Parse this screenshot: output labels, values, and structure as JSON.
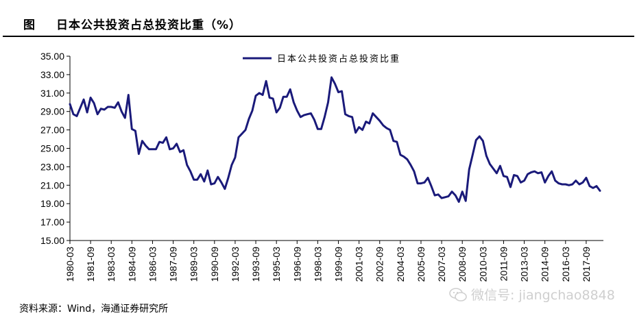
{
  "figure": {
    "label": "图",
    "title": "日本公共投资占总投资比重（%）",
    "source": "资料来源：Wind，海通证券研究所",
    "watermark": "微信号: jiangchao8848"
  },
  "colors": {
    "series": "#1a1a7a",
    "axis": "#000000"
  },
  "chart_data": {
    "type": "line",
    "title": "",
    "xlabel": "",
    "ylabel": "",
    "ylim": [
      15,
      35
    ],
    "yticks": [
      "35.00",
      "33.00",
      "31.00",
      "29.00",
      "27.00",
      "25.00",
      "23.00",
      "21.00",
      "19.00",
      "17.00",
      "15.00"
    ],
    "xlim": [
      "1980-03",
      "2018-12"
    ],
    "xticks": [
      "1980-03",
      "1981-09",
      "1983-03",
      "1984-09",
      "1986-03",
      "1987-09",
      "1989-03",
      "1990-09",
      "1992-03",
      "1993-09",
      "1995-03",
      "1996-09",
      "1998-03",
      "1999-09",
      "2001-03",
      "2002-09",
      "2004-03",
      "2005-09",
      "2007-03",
      "2008-09",
      "2010-03",
      "2011-09",
      "2013-03",
      "2014-09",
      "2016-03",
      "2017-09"
    ],
    "grid": false,
    "legend": "top-center",
    "series": [
      {
        "name": "日本公共投资占总投资比重",
        "points": [
          [
            "1980-03",
            29.8
          ],
          [
            "1980-06",
            28.7
          ],
          [
            "1980-09",
            28.5
          ],
          [
            "1980-12",
            29.4
          ],
          [
            "1981-03",
            30.3
          ],
          [
            "1981-06",
            28.9
          ],
          [
            "1981-09",
            30.5
          ],
          [
            "1981-12",
            29.9
          ],
          [
            "1982-03",
            28.7
          ],
          [
            "1982-06",
            29.3
          ],
          [
            "1982-09",
            29.2
          ],
          [
            "1982-12",
            29.5
          ],
          [
            "1983-03",
            29.5
          ],
          [
            "1983-06",
            29.4
          ],
          [
            "1983-09",
            30.0
          ],
          [
            "1983-12",
            29.0
          ],
          [
            "1984-03",
            28.3
          ],
          [
            "1984-06",
            30.8
          ],
          [
            "1984-09",
            27.1
          ],
          [
            "1984-12",
            26.9
          ],
          [
            "1985-03",
            24.4
          ],
          [
            "1985-06",
            25.8
          ],
          [
            "1985-09",
            25.3
          ],
          [
            "1985-12",
            24.9
          ],
          [
            "1986-03",
            24.9
          ],
          [
            "1986-06",
            24.9
          ],
          [
            "1986-09",
            25.7
          ],
          [
            "1986-12",
            25.6
          ],
          [
            "1987-03",
            26.2
          ],
          [
            "1987-06",
            24.9
          ],
          [
            "1987-09",
            25.0
          ],
          [
            "1987-12",
            25.5
          ],
          [
            "1988-03",
            24.6
          ],
          [
            "1988-06",
            24.8
          ],
          [
            "1988-09",
            23.2
          ],
          [
            "1988-12",
            22.5
          ],
          [
            "1989-03",
            21.6
          ],
          [
            "1989-06",
            21.6
          ],
          [
            "1989-09",
            22.2
          ],
          [
            "1989-12",
            21.4
          ],
          [
            "1990-03",
            22.6
          ],
          [
            "1990-06",
            21.1
          ],
          [
            "1990-09",
            21.2
          ],
          [
            "1990-12",
            21.9
          ],
          [
            "1991-03",
            21.3
          ],
          [
            "1991-06",
            20.6
          ],
          [
            "1991-09",
            21.8
          ],
          [
            "1991-12",
            23.2
          ],
          [
            "1992-03",
            24.0
          ],
          [
            "1992-06",
            26.2
          ],
          [
            "1992-09",
            26.6
          ],
          [
            "1992-12",
            27.0
          ],
          [
            "1993-03",
            28.2
          ],
          [
            "1993-06",
            29.1
          ],
          [
            "1993-09",
            30.7
          ],
          [
            "1993-12",
            31.0
          ],
          [
            "1994-03",
            30.8
          ],
          [
            "1994-06",
            32.3
          ],
          [
            "1994-09",
            30.5
          ],
          [
            "1994-12",
            30.4
          ],
          [
            "1995-03",
            28.9
          ],
          [
            "1995-06",
            29.4
          ],
          [
            "1995-09",
            30.6
          ],
          [
            "1995-12",
            30.6
          ],
          [
            "1996-03",
            31.4
          ],
          [
            "1996-06",
            30.0
          ],
          [
            "1996-09",
            29.1
          ],
          [
            "1996-12",
            28.4
          ],
          [
            "1997-03",
            28.6
          ],
          [
            "1997-06",
            28.7
          ],
          [
            "1997-09",
            28.8
          ],
          [
            "1997-12",
            28.1
          ],
          [
            "1998-03",
            27.1
          ],
          [
            "1998-06",
            27.1
          ],
          [
            "1998-09",
            28.4
          ],
          [
            "1998-12",
            30.0
          ],
          [
            "1999-03",
            32.7
          ],
          [
            "1999-06",
            32.0
          ],
          [
            "1999-09",
            31.1
          ],
          [
            "1999-12",
            31.2
          ],
          [
            "2000-03",
            28.7
          ],
          [
            "2000-06",
            28.5
          ],
          [
            "2000-09",
            28.4
          ],
          [
            "2000-12",
            26.7
          ],
          [
            "2001-03",
            27.3
          ],
          [
            "2001-06",
            27.0
          ],
          [
            "2001-09",
            27.9
          ],
          [
            "2001-12",
            27.7
          ],
          [
            "2002-03",
            28.8
          ],
          [
            "2002-06",
            28.4
          ],
          [
            "2002-09",
            28.0
          ],
          [
            "2002-12",
            27.5
          ],
          [
            "2003-03",
            27.2
          ],
          [
            "2003-06",
            27.0
          ],
          [
            "2003-09",
            25.8
          ],
          [
            "2003-12",
            25.7
          ],
          [
            "2004-03",
            24.3
          ],
          [
            "2004-06",
            24.1
          ],
          [
            "2004-09",
            23.8
          ],
          [
            "2004-12",
            23.2
          ],
          [
            "2005-03",
            22.5
          ],
          [
            "2005-06",
            21.2
          ],
          [
            "2005-09",
            21.2
          ],
          [
            "2005-12",
            21.3
          ],
          [
            "2006-03",
            21.8
          ],
          [
            "2006-06",
            20.9
          ],
          [
            "2006-09",
            19.9
          ],
          [
            "2006-12",
            20.0
          ],
          [
            "2007-03",
            19.6
          ],
          [
            "2007-06",
            19.7
          ],
          [
            "2007-09",
            19.8
          ],
          [
            "2007-12",
            20.3
          ],
          [
            "2008-03",
            19.9
          ],
          [
            "2008-06",
            19.2
          ],
          [
            "2008-09",
            20.3
          ],
          [
            "2008-12",
            19.3
          ],
          [
            "2009-03",
            22.7
          ],
          [
            "2009-06",
            24.3
          ],
          [
            "2009-09",
            25.9
          ],
          [
            "2009-12",
            26.3
          ],
          [
            "2010-03",
            25.8
          ],
          [
            "2010-06",
            24.2
          ],
          [
            "2010-09",
            23.3
          ],
          [
            "2010-12",
            22.8
          ],
          [
            "2011-03",
            22.3
          ],
          [
            "2011-06",
            23.1
          ],
          [
            "2011-09",
            22.0
          ],
          [
            "2011-12",
            21.9
          ],
          [
            "2012-03",
            20.8
          ],
          [
            "2012-06",
            22.1
          ],
          [
            "2012-09",
            22.0
          ],
          [
            "2012-12",
            21.3
          ],
          [
            "2013-03",
            21.5
          ],
          [
            "2013-06",
            22.2
          ],
          [
            "2013-09",
            22.4
          ],
          [
            "2013-12",
            22.5
          ],
          [
            "2014-03",
            22.3
          ],
          [
            "2014-06",
            22.4
          ],
          [
            "2014-09",
            21.3
          ],
          [
            "2014-12",
            22.0
          ],
          [
            "2015-03",
            22.5
          ],
          [
            "2015-06",
            21.5
          ],
          [
            "2015-09",
            21.2
          ],
          [
            "2015-12",
            21.1
          ],
          [
            "2016-03",
            21.1
          ],
          [
            "2016-06",
            21.0
          ],
          [
            "2016-09",
            21.1
          ],
          [
            "2016-12",
            21.5
          ],
          [
            "2017-03",
            21.1
          ],
          [
            "2017-06",
            21.3
          ],
          [
            "2017-09",
            21.8
          ],
          [
            "2017-12",
            20.9
          ],
          [
            "2018-03",
            20.7
          ],
          [
            "2018-06",
            20.9
          ],
          [
            "2018-09",
            20.4
          ]
        ]
      }
    ]
  }
}
